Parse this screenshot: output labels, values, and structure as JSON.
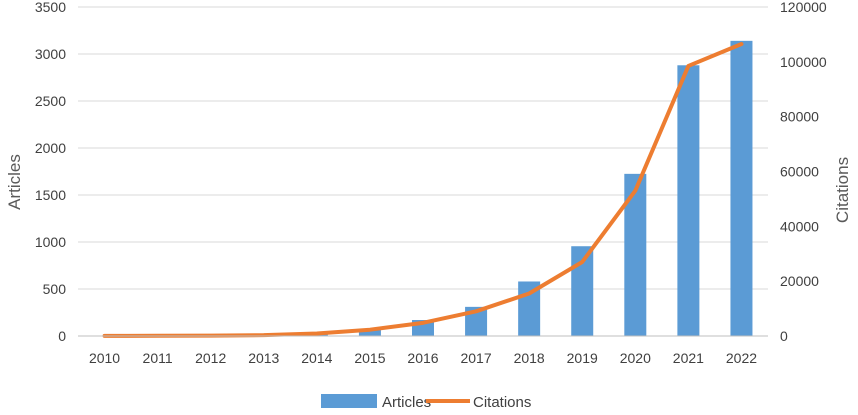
{
  "chart_data": {
    "type": "bar",
    "categories": [
      "2010",
      "2011",
      "2012",
      "2013",
      "2014",
      "2015",
      "2016",
      "2017",
      "2018",
      "2019",
      "2020",
      "2021",
      "2022"
    ],
    "series": [
      {
        "name": "Articles",
        "type": "bar",
        "axis": "left",
        "color": "#5B9BD5",
        "values": [
          2,
          3,
          5,
          8,
          20,
          70,
          170,
          310,
          580,
          955,
          1725,
          2880,
          3140
        ]
      },
      {
        "name": "Citations",
        "type": "line",
        "axis": "right",
        "color": "#ED7D31",
        "values": [
          50,
          80,
          150,
          300,
          900,
          2300,
          4800,
          9000,
          15500,
          27000,
          53000,
          98500,
          106500
        ]
      }
    ],
    "ylabel": "Articles",
    "y2label": "Citations",
    "ylim": [
      0,
      3500
    ],
    "yticks": [
      0,
      500,
      1000,
      1500,
      2000,
      2500,
      3000,
      3500
    ],
    "y2lim": [
      0,
      120000
    ],
    "y2ticks": [
      0,
      20000,
      40000,
      60000,
      80000,
      100000,
      120000
    ],
    "grid": true,
    "legend_position": "bottom"
  }
}
